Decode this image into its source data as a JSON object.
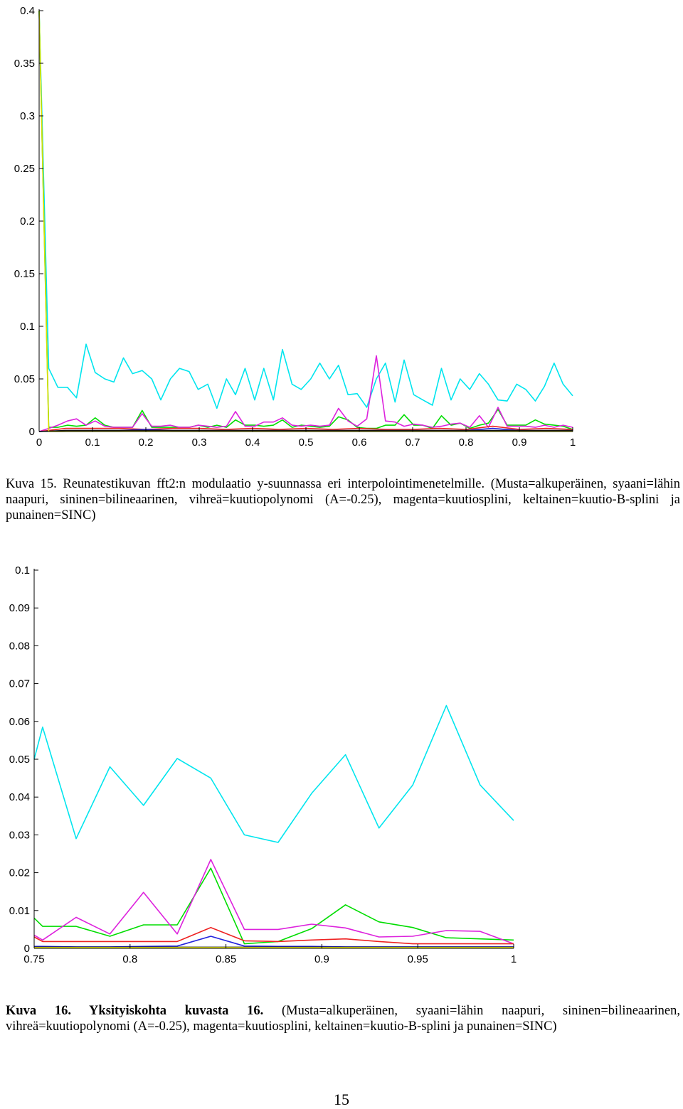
{
  "captions": [
    {
      "prefix": "Kuva 15. Reunatestikuvan fft2:n modulaatio y-suunnassa eri interpolointimenetelmille.",
      "text": " (Musta=alkuperäinen, syaani=lähin naapuri, sininen=bilineaarinen, vihreä=kuutiopolynomi (A=-0.25), magenta=kuutiosplini, keltainen=kuutio-B-splini ja punainen=SINC)"
    },
    {
      "prefix": "Kuva 16. Yksityiskohta kuvasta 16.",
      "text": " (Musta=alkuperäinen, syaani=lähin naapuri, sininen=bilineaarinen, vihreä=kuutiopolynomi (A=-0.25), magenta=kuutiosplini, keltainen=kuutio-B-splini ja punainen=SINC)"
    }
  ],
  "page_number": "15",
  "chart_data": [
    {
      "type": "line",
      "xlim": [
        0,
        1
      ],
      "ylim": [
        0,
        0.4
      ],
      "x_ticks": [
        "0",
        "0.1",
        "0.2",
        "0.3",
        "0.4",
        "0.5",
        "0.6",
        "0.7",
        "0.8",
        "0.9",
        "1"
      ],
      "y_ticks": [
        "0",
        "0.05",
        "0.1",
        "0.15",
        "0.2",
        "0.25",
        "0.3",
        "0.35",
        "0.4"
      ],
      "grid": false,
      "legend": "none",
      "series": [
        {
          "color": "#00e5ee",
          "x": [
            0.0,
            0.018,
            0.035,
            0.053,
            0.07,
            0.088,
            0.105,
            0.123,
            0.14,
            0.158,
            0.175,
            0.193,
            0.211,
            0.228,
            0.246,
            0.263,
            0.281,
            0.298,
            0.316,
            0.333,
            0.351,
            0.368,
            0.386,
            0.404,
            0.421,
            0.439,
            0.456,
            0.474,
            0.491,
            0.509,
            0.526,
            0.544,
            0.561,
            0.579,
            0.596,
            0.614,
            0.632,
            0.649,
            0.667,
            0.684,
            0.702,
            0.719,
            0.737,
            0.754,
            0.772,
            0.789,
            0.807,
            0.825,
            0.842,
            0.86,
            0.877,
            0.895,
            0.912,
            0.93,
            0.947,
            0.965,
            0.982,
            1.0
          ],
          "y": [
            0.4,
            0.06,
            0.042,
            0.042,
            0.032,
            0.083,
            0.056,
            0.05,
            0.047,
            0.07,
            0.055,
            0.058,
            0.05,
            0.03,
            0.05,
            0.06,
            0.057,
            0.04,
            0.045,
            0.022,
            0.05,
            0.035,
            0.06,
            0.03,
            0.06,
            0.03,
            0.078,
            0.045,
            0.04,
            0.05,
            0.065,
            0.05,
            0.063,
            0.035,
            0.036,
            0.023,
            0.05,
            0.065,
            0.028,
            0.068,
            0.035,
            0.03,
            0.025,
            0.06,
            0.03,
            0.05,
            0.04,
            0.055,
            0.045,
            0.03,
            0.029,
            0.045,
            0.04,
            0.029,
            0.043,
            0.065,
            0.045,
            0.034
          ]
        },
        {
          "color": "#00dd00",
          "x": [
            0.0,
            0.018,
            0.035,
            0.053,
            0.07,
            0.088,
            0.105,
            0.123,
            0.14,
            0.158,
            0.175,
            0.193,
            0.211,
            0.228,
            0.246,
            0.263,
            0.281,
            0.298,
            0.316,
            0.333,
            0.351,
            0.368,
            0.386,
            0.404,
            0.421,
            0.439,
            0.456,
            0.474,
            0.491,
            0.509,
            0.526,
            0.544,
            0.561,
            0.579,
            0.596,
            0.614,
            0.632,
            0.649,
            0.667,
            0.684,
            0.702,
            0.719,
            0.737,
            0.754,
            0.772,
            0.789,
            0.807,
            0.825,
            0.842,
            0.86,
            0.877,
            0.895,
            0.912,
            0.93,
            0.947,
            0.965,
            0.982,
            1.0
          ],
          "y": [
            0.4,
            0.004,
            0.004,
            0.006,
            0.005,
            0.006,
            0.013,
            0.006,
            0.004,
            0.004,
            0.004,
            0.02,
            0.004,
            0.004,
            0.004,
            0.004,
            0.004,
            0.006,
            0.004,
            0.006,
            0.004,
            0.011,
            0.006,
            0.006,
            0.005,
            0.006,
            0.011,
            0.004,
            0.006,
            0.005,
            0.004,
            0.005,
            0.014,
            0.011,
            0.004,
            0.003,
            0.003,
            0.006,
            0.006,
            0.016,
            0.006,
            0.006,
            0.003,
            0.015,
            0.006,
            0.008,
            0.003,
            0.006,
            0.008,
            0.021,
            0.006,
            0.006,
            0.006,
            0.011,
            0.007,
            0.006,
            0.005,
            0.002
          ]
        },
        {
          "color": "#dd22dd",
          "x": [
            0.0,
            0.018,
            0.035,
            0.053,
            0.07,
            0.088,
            0.105,
            0.123,
            0.14,
            0.158,
            0.175,
            0.193,
            0.211,
            0.228,
            0.246,
            0.263,
            0.281,
            0.298,
            0.316,
            0.333,
            0.351,
            0.368,
            0.386,
            0.404,
            0.421,
            0.439,
            0.456,
            0.474,
            0.491,
            0.509,
            0.526,
            0.544,
            0.561,
            0.579,
            0.596,
            0.614,
            0.632,
            0.649,
            0.667,
            0.684,
            0.702,
            0.719,
            0.737,
            0.754,
            0.772,
            0.789,
            0.807,
            0.825,
            0.842,
            0.86,
            0.877,
            0.895,
            0.912,
            0.93,
            0.947,
            0.965,
            0.982,
            1.0
          ],
          "y": [
            0.0,
            0.003,
            0.006,
            0.01,
            0.012,
            0.006,
            0.01,
            0.005,
            0.004,
            0.004,
            0.004,
            0.017,
            0.005,
            0.005,
            0.006,
            0.004,
            0.004,
            0.006,
            0.005,
            0.004,
            0.005,
            0.019,
            0.005,
            0.005,
            0.009,
            0.009,
            0.013,
            0.006,
            0.005,
            0.006,
            0.005,
            0.006,
            0.022,
            0.01,
            0.005,
            0.012,
            0.072,
            0.01,
            0.009,
            0.005,
            0.007,
            0.006,
            0.004,
            0.005,
            0.007,
            0.008,
            0.004,
            0.015,
            0.004,
            0.023,
            0.005,
            0.005,
            0.005,
            0.004,
            0.006,
            0.004,
            0.006,
            0.004
          ]
        },
        {
          "color": "#ee2222",
          "x": [
            0.0,
            0.05,
            0.1,
            0.15,
            0.2,
            0.25,
            0.3,
            0.35,
            0.4,
            0.45,
            0.5,
            0.55,
            0.6,
            0.65,
            0.7,
            0.75,
            0.8,
            0.85,
            0.9,
            0.95,
            1.0
          ],
          "y": [
            0.0,
            0.003,
            0.003,
            0.003,
            0.002,
            0.003,
            0.003,
            0.002,
            0.003,
            0.002,
            0.003,
            0.002,
            0.003,
            0.002,
            0.002,
            0.003,
            0.002,
            0.005,
            0.002,
            0.003,
            0.002
          ]
        },
        {
          "color": "#2222dd",
          "x": [
            0.0,
            0.05,
            0.1,
            0.15,
            0.2,
            0.25,
            0.3,
            0.35,
            0.4,
            0.45,
            0.5,
            0.55,
            0.6,
            0.65,
            0.7,
            0.75,
            0.8,
            0.85,
            0.9,
            0.95,
            1.0
          ],
          "y": [
            0.0,
            0.001,
            0.001,
            0.001,
            0.002,
            0.001,
            0.001,
            0.001,
            0.001,
            0.001,
            0.001,
            0.001,
            0.001,
            0.001,
            0.001,
            0.001,
            0.001,
            0.003,
            0.001,
            0.001,
            0.001
          ]
        },
        {
          "color": "#111111",
          "x": [
            0.0,
            0.05,
            0.1,
            0.15,
            0.2,
            0.25,
            0.3,
            0.35,
            0.4,
            0.45,
            0.5,
            0.55,
            0.6,
            0.65,
            0.7,
            0.75,
            0.8,
            0.85,
            0.9,
            0.95,
            1.0
          ],
          "y": [
            0.0,
            0.001,
            0.001,
            0.001,
            0.001,
            0.001,
            0.001,
            0.001,
            0.001,
            0.001,
            0.001,
            0.001,
            0.001,
            0.001,
            0.001,
            0.001,
            0.001,
            0.001,
            0.001,
            0.001,
            0.001
          ]
        },
        {
          "color": "#dddd00",
          "x": [
            0.0,
            0.018,
            0.05,
            0.1,
            0.2,
            0.3,
            0.4,
            0.5,
            0.6,
            0.7,
            0.8,
            0.9,
            1.0
          ],
          "y": [
            0.4,
            0.0,
            0.0,
            0.0,
            0.0,
            0.0,
            0.0,
            0.0,
            0.0,
            0.0,
            0.0,
            0.0,
            0.0
          ]
        }
      ]
    },
    {
      "type": "line",
      "xlim": [
        0.75,
        1
      ],
      "ylim": [
        0,
        0.1
      ],
      "x_ticks": [
        "0.75",
        "0.8",
        "0.85",
        "0.9",
        "0.95",
        "1"
      ],
      "y_ticks": [
        "0",
        "0.01",
        "0.02",
        "0.03",
        "0.04",
        "0.05",
        "0.06",
        "0.07",
        "0.08",
        "0.09",
        "0.1"
      ],
      "grid": false,
      "legend": "none",
      "series": [
        {
          "color": "#00e5ee",
          "x": [
            0.75,
            0.7544,
            0.7719,
            0.7895,
            0.807,
            0.8246,
            0.8421,
            0.8596,
            0.8772,
            0.8947,
            0.9123,
            0.9298,
            0.9474,
            0.9649,
            0.9825,
            1.0
          ],
          "y": [
            0.05,
            0.0585,
            0.029,
            0.048,
            0.0378,
            0.0502,
            0.045,
            0.03,
            0.028,
            0.041,
            0.0512,
            0.0318,
            0.0432,
            0.0642,
            0.0432,
            0.0338
          ]
        },
        {
          "color": "#00dd00",
          "x": [
            0.75,
            0.7544,
            0.7719,
            0.7895,
            0.807,
            0.8246,
            0.8421,
            0.8596,
            0.8772,
            0.8947,
            0.9123,
            0.9298,
            0.9474,
            0.9649,
            0.9825,
            1.0
          ],
          "y": [
            0.008,
            0.0058,
            0.0058,
            0.0032,
            0.0062,
            0.0062,
            0.0212,
            0.0012,
            0.0018,
            0.0052,
            0.0115,
            0.007,
            0.0055,
            0.0028,
            0.0025,
            0.0022
          ]
        },
        {
          "color": "#dd22dd",
          "x": [
            0.75,
            0.7544,
            0.7719,
            0.7895,
            0.807,
            0.8246,
            0.8421,
            0.8596,
            0.8772,
            0.8947,
            0.9123,
            0.9298,
            0.9474,
            0.9649,
            0.9825,
            1.0
          ],
          "y": [
            0.0035,
            0.0022,
            0.0082,
            0.0038,
            0.0148,
            0.0038,
            0.0235,
            0.005,
            0.005,
            0.0064,
            0.0054,
            0.003,
            0.0032,
            0.0047,
            0.0045,
            0.0012
          ]
        },
        {
          "color": "#ee2222",
          "x": [
            0.75,
            0.7544,
            0.7719,
            0.7895,
            0.807,
            0.8246,
            0.8421,
            0.8596,
            0.8772,
            0.8947,
            0.9123,
            0.9298,
            0.9474,
            0.9649,
            0.9825,
            1.0
          ],
          "y": [
            0.003,
            0.0018,
            0.0018,
            0.0018,
            0.0018,
            0.0018,
            0.0055,
            0.002,
            0.0018,
            0.0022,
            0.0025,
            0.0018,
            0.0012,
            0.0012,
            0.0012,
            0.0012
          ]
        },
        {
          "color": "#2222dd",
          "x": [
            0.75,
            0.7544,
            0.7719,
            0.7895,
            0.807,
            0.8246,
            0.8421,
            0.8596,
            0.8772,
            0.8947,
            0.9123,
            0.9298,
            0.9474,
            0.9649,
            0.9825,
            1.0
          ],
          "y": [
            0.0005,
            0.0005,
            0.0004,
            0.0004,
            0.0005,
            0.0006,
            0.0032,
            0.0006,
            0.0005,
            0.0005,
            0.0004,
            0.0004,
            0.0004,
            0.0004,
            0.0004,
            0.0004
          ]
        },
        {
          "color": "#111111",
          "x": [
            0.75,
            0.7544,
            0.7719,
            0.7895,
            0.807,
            0.8246,
            0.8421,
            0.8596,
            0.8772,
            0.8947,
            0.9123,
            0.9298,
            0.9474,
            0.9649,
            0.9825,
            1.0
          ],
          "y": [
            0.0003,
            0.0003,
            0.0003,
            0.0003,
            0.0003,
            0.0003,
            0.0003,
            0.0003,
            0.0003,
            0.0003,
            0.0003,
            0.0003,
            0.0003,
            0.0003,
            0.0003,
            0.0003
          ]
        },
        {
          "color": "#dddd00",
          "x": [
            0.75,
            0.7544,
            0.7719,
            0.7895,
            0.807,
            0.8246,
            0.8421,
            0.8596,
            0.8772,
            0.8947,
            0.9123,
            0.9298,
            0.9474,
            0.9649,
            0.9825,
            1.0
          ],
          "y": [
            0.0002,
            0.0002,
            0.0002,
            0.0002,
            0.0002,
            0.0002,
            0.0002,
            0.0002,
            0.0002,
            0.0002,
            0.0002,
            0.0002,
            0.0002,
            0.0002,
            0.0002,
            0.0002
          ]
        }
      ]
    }
  ]
}
